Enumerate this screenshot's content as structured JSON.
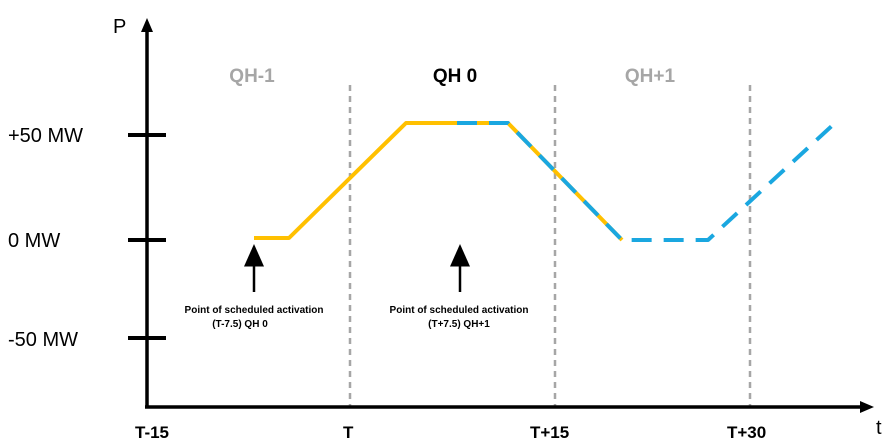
{
  "axes": {
    "y_label": "P",
    "x_label": "t",
    "y_ticks": [
      "+50 MW",
      "0 MW",
      "-50 MW"
    ],
    "x_ticks": [
      "T-15",
      "T",
      "T+15",
      "T+30"
    ]
  },
  "quarter_hours": [
    {
      "label": "QH-1",
      "color": "#a6a6a6"
    },
    {
      "label": "QH 0",
      "color": "#000000"
    },
    {
      "label": "QH+1",
      "color": "#a6a6a6"
    }
  ],
  "annotations": [
    {
      "line1": "Point of scheduled activation",
      "line2": "(T-7.5) QH 0"
    },
    {
      "line1": "Point of scheduled activation",
      "line2": "(T+7.5) QH+1"
    }
  ],
  "colors": {
    "solid_profile": "#ffc000",
    "dashed_profile": "#1aa7e0",
    "gridline": "#a6a6a6",
    "axis": "#000000"
  }
}
